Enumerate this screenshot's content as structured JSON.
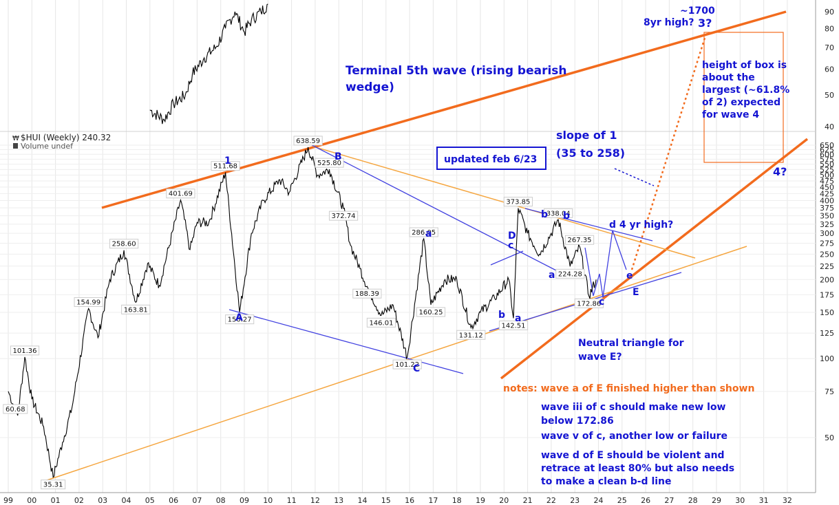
{
  "header": {
    "symbol_title": "$HUI (Weekly) 240.32",
    "volume_label": "Volume undef"
  },
  "chart_data": [
    {
      "type": "line",
      "title": "$HUI (Weekly) 240.32",
      "y_scale": "log",
      "ylim": [
        30,
        700
      ],
      "xlim": [
        1999.0,
        2033.0
      ],
      "grid": true,
      "x_ticks": [
        "99",
        "00",
        "01",
        "02",
        "03",
        "04",
        "05",
        "06",
        "07",
        "08",
        "09",
        "10",
        "11",
        "12",
        "13",
        "14",
        "15",
        "16",
        "17",
        "18",
        "19",
        "20",
        "21",
        "22",
        "23",
        "24",
        "25",
        "26",
        "27",
        "28",
        "29",
        "30",
        "31",
        "32"
      ],
      "y_ticks_main": [
        650,
        625,
        600,
        575,
        550,
        525,
        500,
        475,
        450,
        425,
        400,
        375,
        350,
        325,
        300,
        275,
        250,
        225,
        200,
        175,
        150,
        125,
        100,
        75,
        50
      ],
      "series": [
        {
          "name": "$HUI",
          "points": [
            [
              1999.0,
              75
            ],
            [
              1999.4,
              60.68
            ],
            [
              1999.7,
              101.36
            ],
            [
              2000.0,
              70
            ],
            [
              2000.5,
              55
            ],
            [
              2000.9,
              35.31
            ],
            [
              2001.3,
              48
            ],
            [
              2001.7,
              65
            ],
            [
              2002.4,
              154.99
            ],
            [
              2002.8,
              120
            ],
            [
              2003.3,
              200
            ],
            [
              2003.9,
              258.6
            ],
            [
              2004.4,
              163.81
            ],
            [
              2004.9,
              230
            ],
            [
              2005.4,
              190
            ],
            [
              2006.3,
              401.69
            ],
            [
              2006.7,
              260
            ],
            [
              2007.0,
              330
            ],
            [
              2007.5,
              330
            ],
            [
              2008.2,
              511.68
            ],
            [
              2008.8,
              150.27
            ],
            [
              2009.3,
              300
            ],
            [
              2009.8,
              400
            ],
            [
              2010.5,
              480
            ],
            [
              2010.9,
              430
            ],
            [
              2011.7,
              638.59
            ],
            [
              2012.1,
              500
            ],
            [
              2012.6,
              525.8
            ],
            [
              2013.2,
              372.74
            ],
            [
              2013.5,
              270
            ],
            [
              2013.9,
              220
            ],
            [
              2014.2,
              188.39
            ],
            [
              2014.8,
              146.01
            ],
            [
              2015.3,
              160
            ],
            [
              2015.9,
              101.22
            ],
            [
              2016.6,
              286.05
            ],
            [
              2016.9,
              160.25
            ],
            [
              2017.5,
              200
            ],
            [
              2018.0,
              200
            ],
            [
              2018.6,
              131.12
            ],
            [
              2019.0,
              150
            ],
            [
              2019.6,
              170
            ],
            [
              2020.2,
              200
            ],
            [
              2020.4,
              142.51
            ],
            [
              2020.6,
              373.85
            ],
            [
              2021.0,
              300
            ],
            [
              2021.5,
              250
            ],
            [
              2022.0,
              300
            ],
            [
              2022.3,
              338.04
            ],
            [
              2022.8,
              224.28
            ],
            [
              2023.2,
              267.35
            ],
            [
              2023.6,
              172.86
            ],
            [
              2023.9,
              200
            ]
          ]
        },
        {
          "name": "upper-inset",
          "points": [
            [
              2005.0,
              45
            ],
            [
              2005.6,
              42
            ],
            [
              2006.0,
              47
            ],
            [
              2006.5,
              50
            ],
            [
              2006.8,
              58
            ],
            [
              2007.3,
              65
            ],
            [
              2007.8,
              70
            ],
            [
              2008.2,
              80
            ],
            [
              2008.6,
              90
            ],
            [
              2009.0,
              78
            ],
            [
              2009.3,
              85
            ],
            [
              2009.7,
              90
            ],
            [
              2010.0,
              95
            ]
          ]
        }
      ],
      "inset_y_ticks": [
        90,
        80,
        70,
        60,
        50,
        40
      ],
      "point_labels": [
        {
          "x": 1999.3,
          "y": 60.68,
          "text": "60.68"
        },
        {
          "x": 1999.7,
          "y": 101.36,
          "text": "101.36"
        },
        {
          "x": 2000.9,
          "y": 35.31,
          "text": "35.31"
        },
        {
          "x": 2002.4,
          "y": 154.99,
          "text": "154.99"
        },
        {
          "x": 2003.9,
          "y": 258.6,
          "text": "258.60"
        },
        {
          "x": 2004.4,
          "y": 163.81,
          "text": "163.81"
        },
        {
          "x": 2006.3,
          "y": 401.69,
          "text": "401.69"
        },
        {
          "x": 2008.2,
          "y": 511.68,
          "text": "511.68"
        },
        {
          "x": 2008.8,
          "y": 150.27,
          "text": "150.27"
        },
        {
          "x": 2011.7,
          "y": 638.59,
          "text": "638.59"
        },
        {
          "x": 2012.6,
          "y": 525.8,
          "text": "525.80"
        },
        {
          "x": 2013.2,
          "y": 372.74,
          "text": "372.74"
        },
        {
          "x": 2014.2,
          "y": 188.39,
          "text": "188.39"
        },
        {
          "x": 2014.8,
          "y": 146.01,
          "text": "146.01"
        },
        {
          "x": 2015.9,
          "y": 101.22,
          "text": "101.22"
        },
        {
          "x": 2016.6,
          "y": 286.05,
          "text": "286.05"
        },
        {
          "x": 2016.9,
          "y": 160.25,
          "text": "160.25"
        },
        {
          "x": 2018.6,
          "y": 131.12,
          "text": "131.12"
        },
        {
          "x": 2020.4,
          "y": 142.51,
          "text": "142.51"
        },
        {
          "x": 2020.6,
          "y": 373.85,
          "text": "373.85"
        },
        {
          "x": 2022.3,
          "y": 338.04,
          "text": "338.04"
        },
        {
          "x": 2022.8,
          "y": 224.28,
          "text": "224.28"
        },
        {
          "x": 2023.2,
          "y": 267.35,
          "text": "267.35"
        },
        {
          "x": 2023.6,
          "y": 172.86,
          "text": "172.86"
        }
      ]
    }
  ],
  "annotations": {
    "terminal_wave": "Terminal 5th wave (rising bearish wedge)",
    "updated": "updated feb 6/23",
    "slope_title": "slope of 1",
    "slope_range": "(35 to 258)",
    "target_price": "~1700",
    "eight_yr_high": "8yr high?",
    "wave3": "3?",
    "box_note": "height of box is about the largest (~61.8% of 2) expected for wave 4",
    "wave4": "4?",
    "d_four_yr_high": "d 4 yr high?",
    "neutral_triangle": "Neutral triangle for wave E?",
    "notes_orange": "notes: wave a of E finished higher than shown",
    "note_iii": "wave iii of c should make new low below 172.86",
    "note_v": "wave v of c, another low or failure",
    "note_d": "wave d of E should be violent and retrace at least 80% but also needs to make a clean b-d line"
  },
  "wave_labels": [
    "1",
    "B",
    "A",
    "a",
    "C",
    "D",
    "c",
    "b",
    "a",
    "b",
    "a",
    "b",
    "c",
    "d",
    "e",
    "E"
  ],
  "colors": {
    "blue": "#1414d2",
    "orange": "#f26b1d",
    "light_orange": "#f5a640",
    "line_blue": "#4040e0",
    "price": "#000000"
  }
}
